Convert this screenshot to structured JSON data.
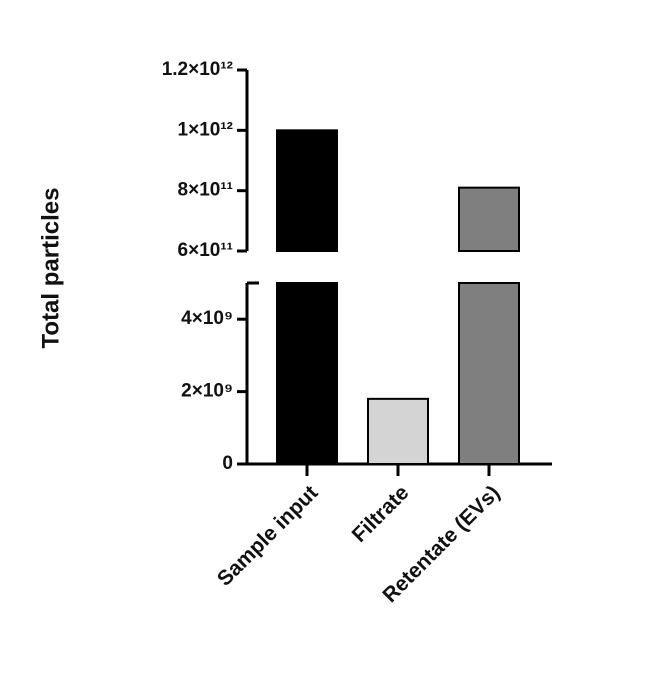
{
  "chart_data": {
    "type": "bar",
    "y_label": "Total particles",
    "categories": [
      "Sample input",
      "Filtrate",
      "Retentate (EVs)"
    ],
    "values": [
      1000000000000,
      1800000000,
      810000000000
    ],
    "colors": [
      "#000000",
      "#d4d4d4",
      "#7f7f7f"
    ],
    "y_segments": [
      {
        "ylim": [
          0,
          5000000000
        ],
        "yticks": [
          0,
          {
            "value": 2000000000,
            "label": "2×10⁹"
          },
          {
            "value": 4000000000,
            "label": "4×10⁹"
          }
        ]
      },
      {
        "ylim": [
          600000000000,
          1200000000000
        ],
        "yticks": [
          {
            "value": 600000000000,
            "label": "6×10¹¹"
          },
          {
            "value": 800000000000,
            "label": "8×10¹¹"
          },
          {
            "value": 1000000000000,
            "label": "1×10¹²"
          },
          {
            "value": 1200000000000,
            "label": "1.2×10¹²"
          }
        ]
      }
    ]
  }
}
